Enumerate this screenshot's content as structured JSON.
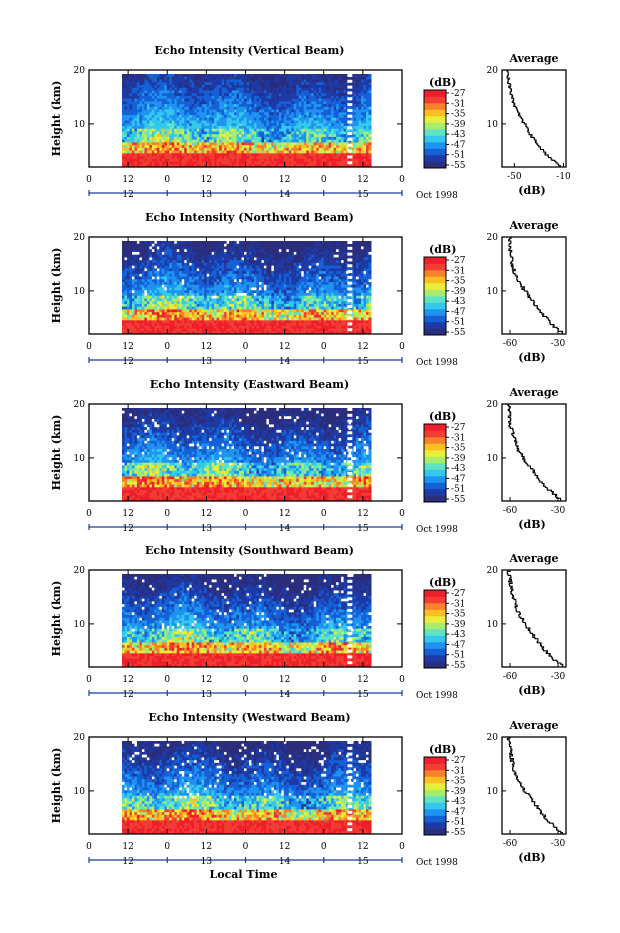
{
  "figure": {
    "bottom_label": "Local Time",
    "date_label": "Oct 1998",
    "colors": {
      "colormap": [
        "#2b2d7d",
        "#1d3aa6",
        "#1560d6",
        "#1f93f2",
        "#33c9ef",
        "#5fe3c4",
        "#a8ec6e",
        "#e8ee3a",
        "#fbbf22",
        "#f9812a",
        "#f13d33",
        "#ee1f2b"
      ],
      "missing": "#ffffff",
      "axis": "#000000",
      "date_marker": "#1a3b9e"
    }
  },
  "chart_data": [
    {
      "type": "heatmap",
      "title": "Echo Intensity (Vertical Beam)",
      "ylabel": "Height (km)",
      "ylim": [
        2,
        20
      ],
      "yticks": [
        10,
        20
      ],
      "xticks_hours": [
        "0",
        "12",
        "0",
        "12",
        "0",
        "12",
        "0",
        "12",
        "0"
      ],
      "date_ticks": [
        "12",
        "13",
        "14",
        "15"
      ],
      "date_label": "Oct 1998",
      "colorbar": {
        "unit": "(dB)",
        "labels": [
          "-27",
          "-31",
          "-35",
          "-39",
          "-43",
          "-47",
          "-51",
          "-55"
        ]
      },
      "profile": {
        "title": "Average",
        "xlabel": "(dB)",
        "xticks": [
          "-50",
          "-10"
        ],
        "xlim": [
          -60,
          -8
        ],
        "yticks": [
          10,
          20
        ],
        "ylim": [
          2,
          20
        ],
        "heights": [
          2,
          4,
          6,
          8,
          10,
          12,
          14,
          16,
          18,
          20
        ],
        "values": [
          -12,
          -23,
          -31,
          -37,
          -42,
          -47,
          -51,
          -53,
          -55,
          -56
        ]
      },
      "seed": 11,
      "missing_rate": 0.0,
      "top_blue_from": 30
    },
    {
      "type": "heatmap",
      "title": "Echo Intensity (Northward Beam)",
      "ylabel": "Height (km)",
      "ylim": [
        2,
        20
      ],
      "yticks": [
        10,
        20
      ],
      "xticks_hours": [
        "0",
        "12",
        "0",
        "12",
        "0",
        "12",
        "0",
        "12",
        "0"
      ],
      "date_ticks": [
        "12",
        "13",
        "14",
        "15"
      ],
      "date_label": "Oct 1998",
      "colorbar": {
        "unit": "(dB)",
        "labels": [
          "-27",
          "-31",
          "-35",
          "-39",
          "-43",
          "-47",
          "-51",
          "-55"
        ]
      },
      "profile": {
        "title": "Average",
        "xlabel": "(dB)",
        "xticks": [
          "-60",
          "-30"
        ],
        "xlim": [
          -65,
          -25
        ],
        "yticks": [
          10,
          20
        ],
        "ylim": [
          2,
          20
        ],
        "heights": [
          2,
          4,
          6,
          8,
          10,
          12,
          14,
          16,
          18,
          20
        ],
        "values": [
          -27,
          -35,
          -41,
          -46,
          -51,
          -55,
          -58,
          -59,
          -60,
          -60
        ]
      },
      "seed": 23,
      "missing_rate": 0.04,
      "top_blue_from": 26
    },
    {
      "type": "heatmap",
      "title": "Echo Intensity (Eastward Beam)",
      "ylabel": "Height (km)",
      "ylim": [
        2,
        20
      ],
      "yticks": [
        10,
        20
      ],
      "xticks_hours": [
        "0",
        "12",
        "0",
        "12",
        "0",
        "12",
        "0",
        "12",
        "0"
      ],
      "date_ticks": [
        "12",
        "13",
        "14",
        "15"
      ],
      "date_label": "Oct 1998",
      "colorbar": {
        "unit": "(dB)",
        "labels": [
          "-27",
          "-31",
          "-35",
          "-39",
          "-43",
          "-47",
          "-51",
          "-55"
        ]
      },
      "profile": {
        "title": "Average",
        "xlabel": "(dB)",
        "xticks": [
          "-60",
          "-30"
        ],
        "xlim": [
          -65,
          -25
        ],
        "yticks": [
          10,
          20
        ],
        "ylim": [
          2,
          20
        ],
        "heights": [
          2,
          4,
          6,
          8,
          10,
          12,
          14,
          16,
          18,
          20
        ],
        "values": [
          -28,
          -36,
          -42,
          -47,
          -52,
          -56,
          -58,
          -60,
          -60,
          -61
        ]
      },
      "seed": 37,
      "missing_rate": 0.06,
      "top_blue_from": 26
    },
    {
      "type": "heatmap",
      "title": "Echo Intensity (Southward Beam)",
      "ylabel": "Height (km)",
      "ylim": [
        2,
        20
      ],
      "yticks": [
        10,
        20
      ],
      "xticks_hours": [
        "0",
        "12",
        "0",
        "12",
        "0",
        "12",
        "0",
        "12",
        "0"
      ],
      "date_ticks": [
        "12",
        "13",
        "14",
        "15"
      ],
      "date_label": "Oct 1998",
      "colorbar": {
        "unit": "(dB)",
        "labels": [
          "-27",
          "-31",
          "-35",
          "-39",
          "-43",
          "-47",
          "-51",
          "-55"
        ]
      },
      "profile": {
        "title": "Average",
        "xlabel": "(dB)",
        "xticks": [
          "-60",
          "-30"
        ],
        "xlim": [
          -65,
          -25
        ],
        "yticks": [
          10,
          20
        ],
        "ylim": [
          2,
          20
        ],
        "heights": [
          2,
          4,
          6,
          8,
          10,
          12,
          14,
          16,
          18,
          20
        ],
        "values": [
          -27,
          -35,
          -41,
          -46,
          -51,
          -55,
          -57,
          -59,
          -60,
          -61
        ]
      },
      "seed": 53,
      "missing_rate": 0.05,
      "top_blue_from": 26
    },
    {
      "type": "heatmap",
      "title": "Echo Intensity (Westward Beam)",
      "ylabel": "Height (km)",
      "ylim": [
        2,
        20
      ],
      "yticks": [
        10,
        20
      ],
      "xticks_hours": [
        "0",
        "12",
        "0",
        "12",
        "0",
        "12",
        "0",
        "12",
        "0"
      ],
      "date_ticks": [
        "12",
        "13",
        "14",
        "15"
      ],
      "date_label": "Oct 1998",
      "colorbar": {
        "unit": "(dB)",
        "labels": [
          "-27",
          "-31",
          "-35",
          "-39",
          "-43",
          "-47",
          "-51",
          "-55"
        ]
      },
      "profile": {
        "title": "Average",
        "xlabel": "(dB)",
        "xticks": [
          "-60",
          "-30"
        ],
        "xlim": [
          -65,
          -25
        ],
        "yticks": [
          10,
          20
        ],
        "ylim": [
          2,
          20
        ],
        "heights": [
          2,
          4,
          6,
          8,
          10,
          12,
          14,
          16,
          18,
          20
        ],
        "values": [
          -27,
          -35,
          -41,
          -46,
          -51,
          -55,
          -58,
          -59,
          -60,
          -61
        ]
      },
      "seed": 71,
      "missing_rate": 0.07,
      "top_blue_from": 26
    }
  ]
}
